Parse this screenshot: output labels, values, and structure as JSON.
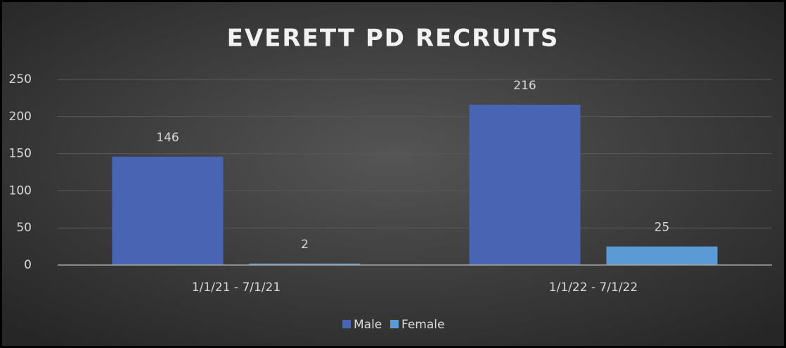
{
  "chart_data": {
    "type": "bar",
    "title": "EVERETT PD RECRUITS",
    "categories": [
      "1/1/21 - 7/1/21",
      "1/1/22 - 7/1/22"
    ],
    "series": [
      {
        "name": "Male",
        "color": "#4a64b4",
        "values": [
          146,
          216
        ]
      },
      {
        "name": "Female",
        "color": "#5b9bd5",
        "values": [
          2,
          25
        ]
      }
    ],
    "ylim": [
      0,
      250
    ],
    "yticks": [
      0,
      50,
      100,
      150,
      200,
      250
    ],
    "grid": true,
    "legend": "bottom"
  }
}
